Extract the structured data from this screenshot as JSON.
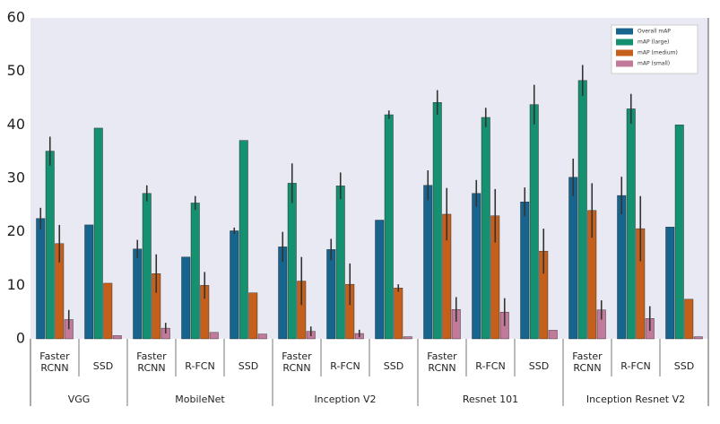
{
  "chart_data": {
    "type": "bar",
    "title": "",
    "xlabel": "",
    "ylabel": "",
    "ylim": [
      0,
      60
    ],
    "yticks": [
      0,
      10,
      20,
      30,
      40,
      50,
      60
    ],
    "grid": false,
    "legend_position": "top-right",
    "colors": {
      "plot_bg": "#e8e9f2",
      "overall": "#17658f",
      "large": "#159070",
      "medium": "#c5601c",
      "small": "#c27a9a",
      "error": "#333333"
    },
    "groups": [
      {
        "name": "VGG",
        "categories": [
          "Faster\nRCNN",
          "SSD"
        ]
      },
      {
        "name": "MobileNet",
        "categories": [
          "Faster\nRCNN",
          "R-FCN",
          "SSD"
        ]
      },
      {
        "name": "Inception V2",
        "categories": [
          "Faster\nRCNN",
          "R-FCN",
          "SSD"
        ]
      },
      {
        "name": "Resnet 101",
        "categories": [
          "Faster\nRCNN",
          "R-FCN",
          "SSD"
        ]
      },
      {
        "name": "Inception Resnet V2",
        "categories": [
          "Faster\nRCNN",
          "R-FCN",
          "SSD"
        ]
      }
    ],
    "series": [
      {
        "name": "Overall mAP",
        "key": "overall",
        "values": [
          22.5,
          21.3,
          16.8,
          15.3,
          20.2,
          17.2,
          16.7,
          22.2,
          28.7,
          27.2,
          25.6,
          30.2,
          26.8,
          20.9
        ],
        "errors": [
          2.0,
          0,
          1.7,
          0,
          0.6,
          2.8,
          2.0,
          0,
          2.8,
          2.5,
          2.7,
          3.5,
          3.5,
          0
        ]
      },
      {
        "name": "mAP (large)",
        "key": "large",
        "values": [
          35.1,
          39.4,
          27.2,
          25.4,
          37.1,
          29.1,
          28.6,
          41.9,
          44.2,
          41.4,
          43.8,
          48.3,
          43.0,
          40.0
        ],
        "errors": [
          2.7,
          0,
          1.5,
          1.3,
          0,
          3.7,
          2.5,
          0.8,
          2.3,
          1.8,
          3.7,
          2.9,
          2.8,
          0
        ]
      },
      {
        "name": "mAP (medium)",
        "key": "medium",
        "values": [
          17.8,
          10.4,
          12.2,
          10.0,
          8.6,
          10.8,
          10.2,
          9.5,
          23.3,
          23.0,
          16.4,
          24.0,
          20.6,
          7.4
        ],
        "errors": [
          3.5,
          0,
          3.6,
          2.5,
          0,
          4.5,
          3.9,
          0.7,
          4.9,
          5.0,
          4.2,
          5.1,
          6.1,
          0
        ]
      },
      {
        "name": "mAP (small)",
        "key": "small",
        "values": [
          3.6,
          0.6,
          2.0,
          1.2,
          0.9,
          1.4,
          1.0,
          0.4,
          5.5,
          5.0,
          1.6,
          5.4,
          3.8,
          0.4
        ],
        "errors": [
          1.8,
          0,
          1.0,
          0,
          0,
          0.9,
          0.7,
          0,
          2.3,
          2.6,
          0,
          1.8,
          2.3,
          0
        ]
      }
    ]
  }
}
